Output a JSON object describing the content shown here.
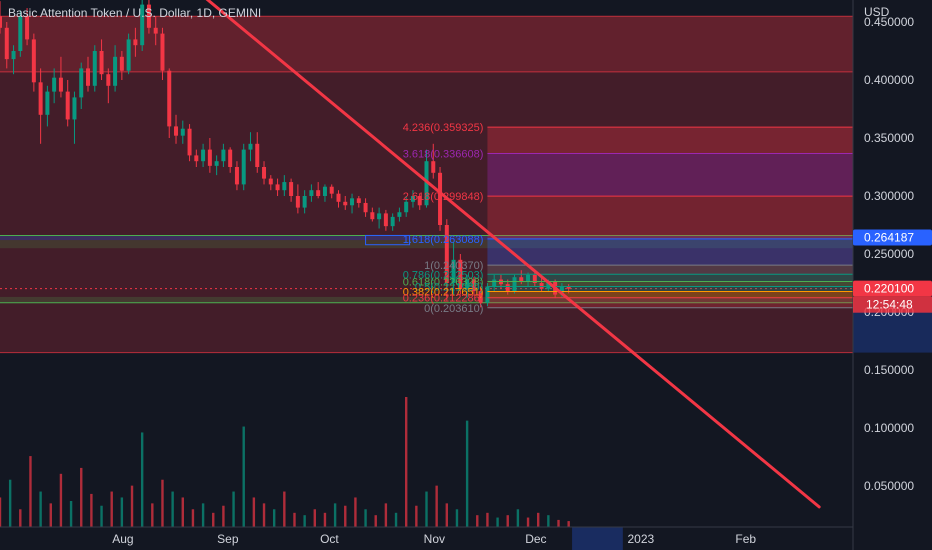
{
  "header": {
    "symbol_title": "Basic Attention Token / U.S. Dollar, 1D, GEMINI"
  },
  "chart_data": {
    "type": "candlestick",
    "currency_label": "USD",
    "yticks": [
      "0.450000",
      "0.400000",
      "0.350000",
      "0.300000",
      "0.250000",
      "0.200000",
      "0.150000",
      "0.100000",
      "0.050000"
    ],
    "ytick_values": [
      0.45,
      0.4,
      0.35,
      0.3,
      0.25,
      0.2,
      0.15,
      0.1,
      0.05
    ],
    "xticks": [
      "Aug",
      "Sep",
      "Oct",
      "Nov",
      "Dec",
      "2023",
      "Feb"
    ],
    "xtick_dates": [
      "2022-08-01",
      "2022-09-01",
      "2022-10-01",
      "2022-11-01",
      "2022-12-01",
      "2023-01-01",
      "2023-02-01"
    ],
    "price_badges": [
      {
        "label": "0.264187",
        "value": 0.264187,
        "color": "#2962ff"
      },
      {
        "label": "0.220100",
        "value": 0.2201,
        "color": "#f23645"
      }
    ],
    "countdown": "12:54:48",
    "fib_levels": [
      {
        "label": "4.236(0.359325)",
        "value": 0.359325,
        "color": "#f23645"
      },
      {
        "label": "3.618(0.336608)",
        "value": 0.336608,
        "color": "#9c27b0"
      },
      {
        "label": "2.618(0.299848)",
        "value": 0.299848,
        "color": "#f23645"
      },
      {
        "label": "1.618(0.263088)",
        "value": 0.263088,
        "color": "#2962ff"
      },
      {
        "label": "1(0.240370)",
        "value": 0.24037,
        "color": "#787b86"
      },
      {
        "label": "0.786(0.232503)",
        "value": 0.232503,
        "color": "#089981"
      },
      {
        "label": "0.618(0.226328)",
        "value": 0.226328,
        "color": "#4caf50"
      },
      {
        "label": "0.5(0.221989)",
        "value": 0.221989,
        "color": "#089981"
      },
      {
        "label": "0.382(0.217651)",
        "value": 0.217651,
        "color": "#ff9800"
      },
      {
        "label": "0.236(0.212286)",
        "value": 0.212286,
        "color": "#f23645"
      },
      {
        "label": "0(0.203610)",
        "value": 0.20361,
        "color": "#787b86"
      }
    ],
    "candles": [
      {
        "date": "2022-07-01",
        "open": 0.455,
        "high": 0.468,
        "low": 0.44,
        "close": 0.445
      },
      {
        "date": "2022-07-03",
        "open": 0.445,
        "high": 0.45,
        "low": 0.41,
        "close": 0.418
      },
      {
        "date": "2022-07-05",
        "open": 0.418,
        "high": 0.43,
        "low": 0.405,
        "close": 0.425
      },
      {
        "date": "2022-07-07",
        "open": 0.425,
        "high": 0.46,
        "low": 0.42,
        "close": 0.455
      },
      {
        "date": "2022-07-09",
        "open": 0.455,
        "high": 0.462,
        "low": 0.43,
        "close": 0.435
      },
      {
        "date": "2022-07-11",
        "open": 0.435,
        "high": 0.44,
        "low": 0.39,
        "close": 0.398
      },
      {
        "date": "2022-07-13",
        "open": 0.398,
        "high": 0.41,
        "low": 0.345,
        "close": 0.37
      },
      {
        "date": "2022-07-15",
        "open": 0.37,
        "high": 0.395,
        "low": 0.36,
        "close": 0.39
      },
      {
        "date": "2022-07-17",
        "open": 0.39,
        "high": 0.41,
        "low": 0.38,
        "close": 0.402
      },
      {
        "date": "2022-07-19",
        "open": 0.402,
        "high": 0.42,
        "low": 0.385,
        "close": 0.39
      },
      {
        "date": "2022-07-21",
        "open": 0.39,
        "high": 0.4,
        "low": 0.36,
        "close": 0.366
      },
      {
        "date": "2022-07-23",
        "open": 0.366,
        "high": 0.39,
        "low": 0.345,
        "close": 0.385
      },
      {
        "date": "2022-07-25",
        "open": 0.385,
        "high": 0.415,
        "low": 0.375,
        "close": 0.41
      },
      {
        "date": "2022-07-27",
        "open": 0.41,
        "high": 0.42,
        "low": 0.39,
        "close": 0.395
      },
      {
        "date": "2022-07-29",
        "open": 0.395,
        "high": 0.43,
        "low": 0.39,
        "close": 0.425
      },
      {
        "date": "2022-07-31",
        "open": 0.425,
        "high": 0.435,
        "low": 0.4,
        "close": 0.405
      },
      {
        "date": "2022-08-02",
        "open": 0.405,
        "high": 0.41,
        "low": 0.38,
        "close": 0.395
      },
      {
        "date": "2022-08-04",
        "open": 0.395,
        "high": 0.43,
        "low": 0.39,
        "close": 0.42
      },
      {
        "date": "2022-08-06",
        "open": 0.42,
        "high": 0.425,
        "low": 0.4,
        "close": 0.408
      },
      {
        "date": "2022-08-08",
        "open": 0.408,
        "high": 0.44,
        "low": 0.405,
        "close": 0.435
      },
      {
        "date": "2022-08-10",
        "open": 0.435,
        "high": 0.445,
        "low": 0.42,
        "close": 0.43
      },
      {
        "date": "2022-08-12",
        "open": 0.43,
        "high": 0.47,
        "low": 0.425,
        "close": 0.465
      },
      {
        "date": "2022-08-14",
        "open": 0.465,
        "high": 0.472,
        "low": 0.44,
        "close": 0.445
      },
      {
        "date": "2022-08-16",
        "open": 0.445,
        "high": 0.455,
        "low": 0.43,
        "close": 0.44
      },
      {
        "date": "2022-08-18",
        "open": 0.44,
        "high": 0.445,
        "low": 0.4,
        "close": 0.408
      },
      {
        "date": "2022-08-20",
        "open": 0.408,
        "high": 0.41,
        "low": 0.35,
        "close": 0.36
      },
      {
        "date": "2022-08-22",
        "open": 0.36,
        "high": 0.37,
        "low": 0.345,
        "close": 0.352
      },
      {
        "date": "2022-08-24",
        "open": 0.352,
        "high": 0.365,
        "low": 0.345,
        "close": 0.358
      },
      {
        "date": "2022-08-26",
        "open": 0.358,
        "high": 0.362,
        "low": 0.33,
        "close": 0.335
      },
      {
        "date": "2022-08-28",
        "open": 0.335,
        "high": 0.34,
        "low": 0.325,
        "close": 0.33
      },
      {
        "date": "2022-08-30",
        "open": 0.33,
        "high": 0.345,
        "low": 0.325,
        "close": 0.34
      },
      {
        "date": "2022-09-01",
        "open": 0.34,
        "high": 0.35,
        "low": 0.32,
        "close": 0.326
      },
      {
        "date": "2022-09-03",
        "open": 0.326,
        "high": 0.335,
        "low": 0.318,
        "close": 0.33
      },
      {
        "date": "2022-09-05",
        "open": 0.33,
        "high": 0.345,
        "low": 0.325,
        "close": 0.34
      },
      {
        "date": "2022-09-07",
        "open": 0.34,
        "high": 0.342,
        "low": 0.32,
        "close": 0.325
      },
      {
        "date": "2022-09-09",
        "open": 0.325,
        "high": 0.33,
        "low": 0.305,
        "close": 0.31
      },
      {
        "date": "2022-09-11",
        "open": 0.31,
        "high": 0.345,
        "low": 0.305,
        "close": 0.34
      },
      {
        "date": "2022-09-13",
        "open": 0.34,
        "high": 0.355,
        "low": 0.33,
        "close": 0.345
      },
      {
        "date": "2022-09-15",
        "open": 0.345,
        "high": 0.355,
        "low": 0.32,
        "close": 0.325
      },
      {
        "date": "2022-09-17",
        "open": 0.325,
        "high": 0.33,
        "low": 0.31,
        "close": 0.315
      },
      {
        "date": "2022-09-19",
        "open": 0.315,
        "high": 0.318,
        "low": 0.305,
        "close": 0.31
      },
      {
        "date": "2022-09-21",
        "open": 0.31,
        "high": 0.315,
        "low": 0.3,
        "close": 0.305
      },
      {
        "date": "2022-09-23",
        "open": 0.305,
        "high": 0.318,
        "low": 0.3,
        "close": 0.312
      },
      {
        "date": "2022-09-25",
        "open": 0.312,
        "high": 0.315,
        "low": 0.295,
        "close": 0.3
      },
      {
        "date": "2022-09-27",
        "open": 0.3,
        "high": 0.31,
        "low": 0.285,
        "close": 0.29
      },
      {
        "date": "2022-09-29",
        "open": 0.29,
        "high": 0.305,
        "low": 0.285,
        "close": 0.3
      },
      {
        "date": "2022-10-01",
        "open": 0.3,
        "high": 0.31,
        "low": 0.295,
        "close": 0.305
      },
      {
        "date": "2022-10-03",
        "open": 0.305,
        "high": 0.312,
        "low": 0.298,
        "close": 0.3
      },
      {
        "date": "2022-10-05",
        "open": 0.3,
        "high": 0.31,
        "low": 0.295,
        "close": 0.308
      },
      {
        "date": "2022-10-07",
        "open": 0.308,
        "high": 0.31,
        "low": 0.298,
        "close": 0.302
      },
      {
        "date": "2022-10-09",
        "open": 0.302,
        "high": 0.305,
        "low": 0.29,
        "close": 0.295
      },
      {
        "date": "2022-10-11",
        "open": 0.295,
        "high": 0.3,
        "low": 0.288,
        "close": 0.292
      },
      {
        "date": "2022-10-13",
        "open": 0.292,
        "high": 0.302,
        "low": 0.285,
        "close": 0.298
      },
      {
        "date": "2022-10-15",
        "open": 0.298,
        "high": 0.3,
        "low": 0.29,
        "close": 0.294
      },
      {
        "date": "2022-10-17",
        "open": 0.294,
        "high": 0.298,
        "low": 0.282,
        "close": 0.286
      },
      {
        "date": "2022-10-19",
        "open": 0.286,
        "high": 0.29,
        "low": 0.278,
        "close": 0.28
      },
      {
        "date": "2022-10-21",
        "open": 0.28,
        "high": 0.29,
        "low": 0.272,
        "close": 0.285
      },
      {
        "date": "2022-10-23",
        "open": 0.285,
        "high": 0.288,
        "low": 0.27,
        "close": 0.274
      },
      {
        "date": "2022-10-25",
        "open": 0.274,
        "high": 0.285,
        "low": 0.27,
        "close": 0.282
      },
      {
        "date": "2022-10-27",
        "open": 0.282,
        "high": 0.29,
        "low": 0.278,
        "close": 0.286
      },
      {
        "date": "2022-10-29",
        "open": 0.286,
        "high": 0.3,
        "low": 0.282,
        "close": 0.295
      },
      {
        "date": "2022-10-31",
        "open": 0.295,
        "high": 0.305,
        "low": 0.29,
        "close": 0.3
      },
      {
        "date": "2022-11-02",
        "open": 0.3,
        "high": 0.302,
        "low": 0.288,
        "close": 0.292
      },
      {
        "date": "2022-11-04",
        "open": 0.292,
        "high": 0.34,
        "low": 0.29,
        "close": 0.33
      },
      {
        "date": "2022-11-06",
        "open": 0.33,
        "high": 0.345,
        "low": 0.315,
        "close": 0.32
      },
      {
        "date": "2022-11-08",
        "open": 0.32,
        "high": 0.325,
        "low": 0.27,
        "close": 0.275
      },
      {
        "date": "2022-11-10",
        "open": 0.275,
        "high": 0.28,
        "low": 0.21,
        "close": 0.225
      },
      {
        "date": "2022-11-12",
        "open": 0.225,
        "high": 0.26,
        "low": 0.215,
        "close": 0.245
      },
      {
        "date": "2022-11-14",
        "open": 0.245,
        "high": 0.25,
        "low": 0.215,
        "close": 0.22
      },
      {
        "date": "2022-11-16",
        "open": 0.22,
        "high": 0.232,
        "low": 0.212,
        "close": 0.228
      },
      {
        "date": "2022-11-18",
        "open": 0.228,
        "high": 0.23,
        "low": 0.214,
        "close": 0.218
      },
      {
        "date": "2022-11-20",
        "open": 0.218,
        "high": 0.222,
        "low": 0.204,
        "close": 0.208
      },
      {
        "date": "2022-11-22",
        "open": 0.208,
        "high": 0.225,
        "low": 0.205,
        "close": 0.222
      },
      {
        "date": "2022-11-24",
        "open": 0.222,
        "high": 0.232,
        "low": 0.218,
        "close": 0.228
      },
      {
        "date": "2022-11-26",
        "open": 0.228,
        "high": 0.232,
        "low": 0.22,
        "close": 0.224
      },
      {
        "date": "2022-11-28",
        "open": 0.224,
        "high": 0.228,
        "low": 0.215,
        "close": 0.218
      },
      {
        "date": "2022-11-30",
        "open": 0.218,
        "high": 0.232,
        "low": 0.216,
        "close": 0.23
      },
      {
        "date": "2022-12-02",
        "open": 0.23,
        "high": 0.236,
        "low": 0.224,
        "close": 0.226
      },
      {
        "date": "2022-12-04",
        "open": 0.226,
        "high": 0.234,
        "low": 0.222,
        "close": 0.232
      },
      {
        "date": "2022-12-06",
        "open": 0.232,
        "high": 0.235,
        "low": 0.222,
        "close": 0.225
      },
      {
        "date": "2022-12-08",
        "open": 0.225,
        "high": 0.23,
        "low": 0.218,
        "close": 0.22
      },
      {
        "date": "2022-12-10",
        "open": 0.22,
        "high": 0.228,
        "low": 0.218,
        "close": 0.226
      },
      {
        "date": "2022-12-12",
        "open": 0.226,
        "high": 0.228,
        "low": 0.212,
        "close": 0.215
      },
      {
        "date": "2022-12-14",
        "open": 0.215,
        "high": 0.225,
        "low": 0.212,
        "close": 0.222
      },
      {
        "date": "2022-12-16",
        "open": 0.222,
        "high": 0.224,
        "low": 0.216,
        "close": 0.2201
      }
    ],
    "volume": {
      "dates": [
        "2022-07-01",
        "2022-07-04",
        "2022-07-07",
        "2022-07-10",
        "2022-07-13",
        "2022-07-16",
        "2022-07-19",
        "2022-07-22",
        "2022-07-25",
        "2022-07-28",
        "2022-07-31",
        "2022-08-03",
        "2022-08-06",
        "2022-08-09",
        "2022-08-12",
        "2022-08-15",
        "2022-08-18",
        "2022-08-21",
        "2022-08-24",
        "2022-08-27",
        "2022-08-30",
        "2022-09-02",
        "2022-09-05",
        "2022-09-08",
        "2022-09-11",
        "2022-09-14",
        "2022-09-17",
        "2022-09-20",
        "2022-09-23",
        "2022-09-26",
        "2022-09-29",
        "2022-10-02",
        "2022-10-05",
        "2022-10-08",
        "2022-10-11",
        "2022-10-14",
        "2022-10-17",
        "2022-10-20",
        "2022-10-23",
        "2022-10-26",
        "2022-10-29",
        "2022-11-01",
        "2022-11-04",
        "2022-11-07",
        "2022-11-10",
        "2022-11-13",
        "2022-11-16",
        "2022-11-19",
        "2022-11-22",
        "2022-11-25",
        "2022-11-28",
        "2022-12-01",
        "2022-12-04",
        "2022-12-07",
        "2022-12-10",
        "2022-12-13",
        "2022-12-16"
      ],
      "values": [
        0.025,
        0.04,
        0.015,
        0.06,
        0.03,
        0.02,
        0.045,
        0.022,
        0.05,
        0.028,
        0.018,
        0.03,
        0.025,
        0.035,
        0.08,
        0.02,
        0.04,
        0.03,
        0.025,
        0.015,
        0.02,
        0.012,
        0.018,
        0.03,
        0.085,
        0.025,
        0.02,
        0.015,
        0.03,
        0.012,
        0.01,
        0.015,
        0.012,
        0.02,
        0.018,
        0.025,
        0.015,
        0.01,
        0.02,
        0.012,
        0.11,
        0.018,
        0.03,
        0.035,
        0.02,
        0.015,
        0.09,
        0.01,
        0.012,
        0.008,
        0.01,
        0.015,
        0.008,
        0.012,
        0.01,
        0.006,
        0.005
      ],
      "up": [
        false,
        true,
        false,
        false,
        true,
        false,
        false,
        true,
        false,
        false,
        true,
        false,
        true,
        false,
        true,
        false,
        false,
        true,
        false,
        false,
        true,
        false,
        false,
        true,
        true,
        false,
        false,
        true,
        false,
        false,
        true,
        false,
        false,
        true,
        false,
        false,
        true,
        false,
        false,
        true,
        false,
        false,
        true,
        false,
        false,
        true,
        true,
        false,
        false,
        true,
        false,
        true,
        false,
        false,
        true,
        false,
        false
      ]
    },
    "trendline": {
      "start": {
        "date": "2022-08-31",
        "value": 0.47
      },
      "end": {
        "date": "2023-02-28",
        "value": 0.032
      },
      "color": "#f23645"
    },
    "ylim": [
      0.0,
      0.47
    ],
    "xlim": [
      "2022-07-01",
      "2023-03-10"
    ],
    "grid": false
  }
}
